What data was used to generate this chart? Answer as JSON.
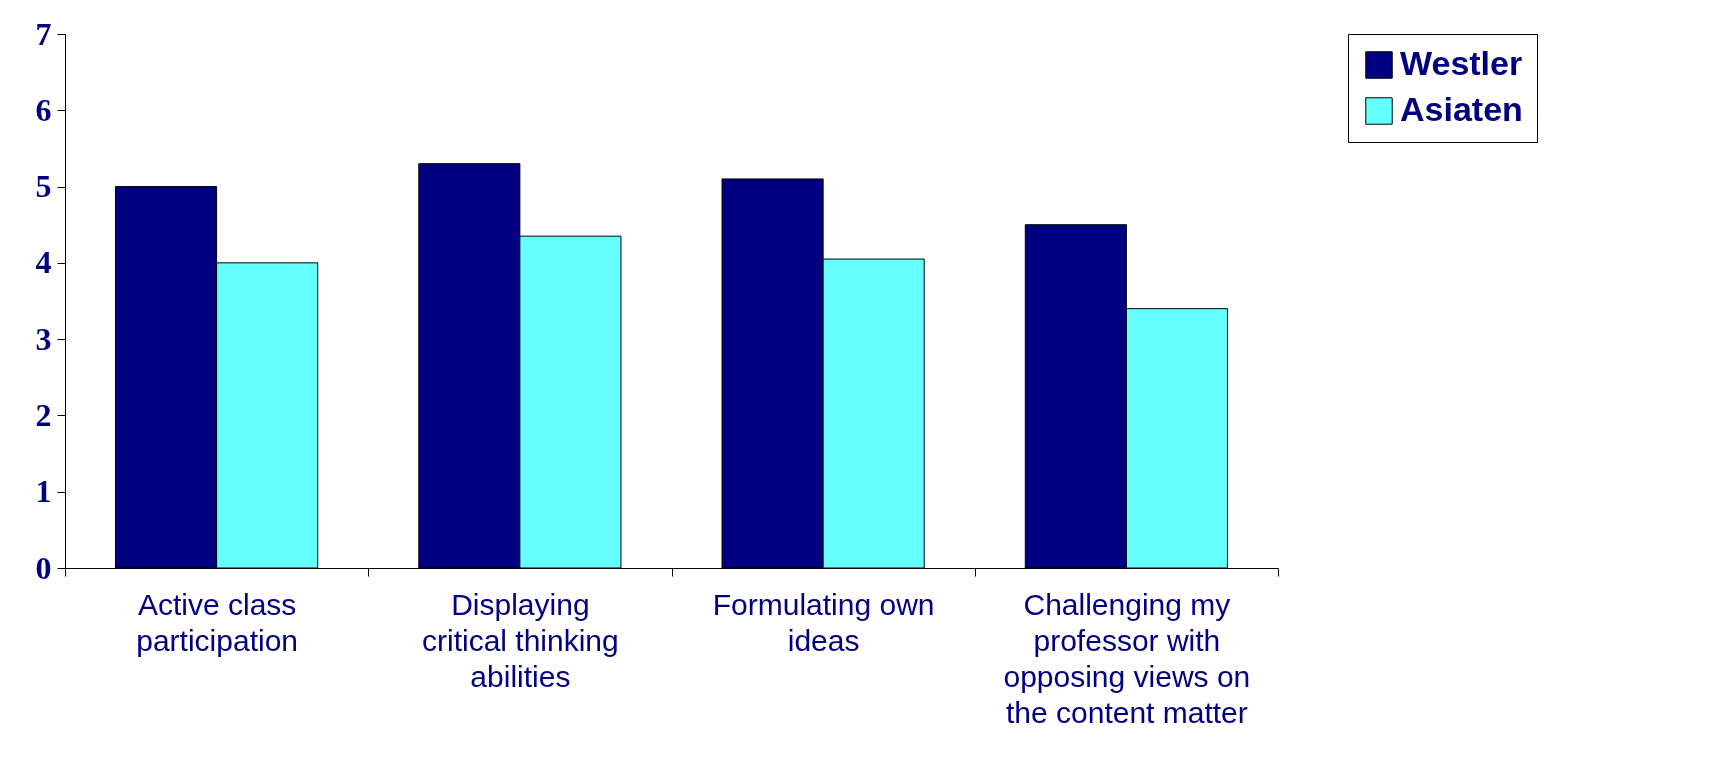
{
  "chart_data": {
    "type": "bar",
    "categories": [
      "Active class participation",
      "Displaying critical thinking abilities",
      "Formulating own ideas",
      "Challenging my professor with opposing views on the content matter"
    ],
    "series": [
      {
        "name": "Westler",
        "color": "#000080",
        "values": [
          5.0,
          5.3,
          5.1,
          4.5
        ]
      },
      {
        "name": "Asiaten",
        "color": "#66ffff",
        "values": [
          4.0,
          4.35,
          4.05,
          3.4
        ]
      }
    ],
    "ylim": [
      0,
      7
    ],
    "yticks": [
      0,
      1,
      2,
      3,
      4,
      5,
      6,
      7
    ],
    "grid": false,
    "legend": "right"
  }
}
